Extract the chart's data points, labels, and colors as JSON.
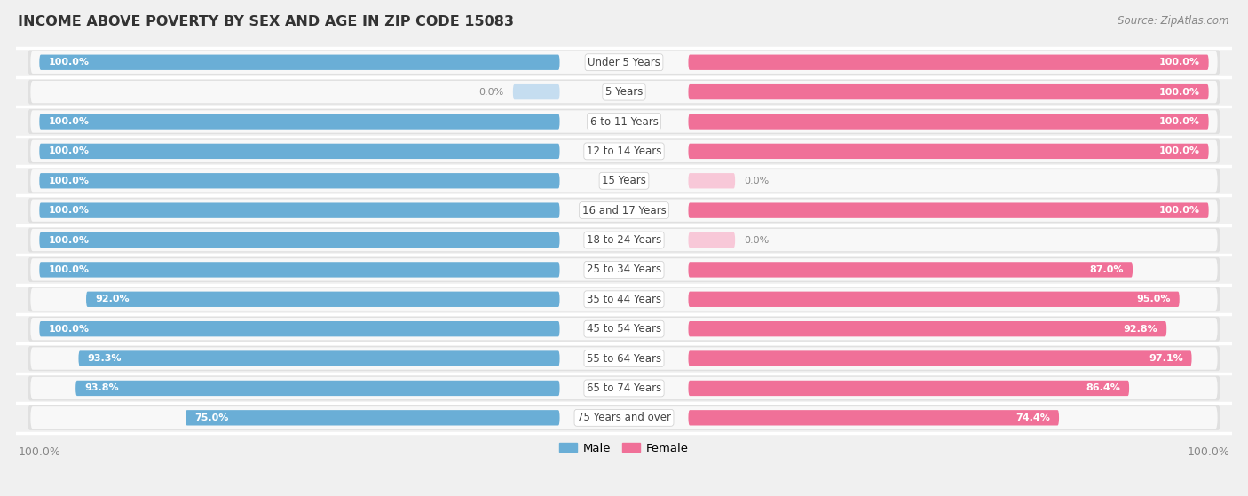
{
  "title": "INCOME ABOVE POVERTY BY SEX AND AGE IN ZIP CODE 15083",
  "source": "Source: ZipAtlas.com",
  "categories": [
    "Under 5 Years",
    "5 Years",
    "6 to 11 Years",
    "12 to 14 Years",
    "15 Years",
    "16 and 17 Years",
    "18 to 24 Years",
    "25 to 34 Years",
    "35 to 44 Years",
    "45 to 54 Years",
    "55 to 64 Years",
    "65 to 74 Years",
    "75 Years and over"
  ],
  "male_values": [
    100.0,
    0.0,
    100.0,
    100.0,
    100.0,
    100.0,
    100.0,
    100.0,
    92.0,
    100.0,
    93.3,
    93.8,
    75.0
  ],
  "female_values": [
    100.0,
    100.0,
    100.0,
    100.0,
    0.0,
    100.0,
    0.0,
    87.0,
    95.0,
    92.8,
    97.1,
    86.4,
    74.4
  ],
  "male_color": "#6aaed6",
  "female_color": "#f07098",
  "male_light_color": "#c5ddf0",
  "female_light_color": "#f8c8d8",
  "background_color": "#f0f0f0",
  "row_bg_color": "#e0e0e0",
  "row_inner_color": "#f8f8f8",
  "sep_color": "#ffffff",
  "legend_male": "Male",
  "legend_female": "Female"
}
